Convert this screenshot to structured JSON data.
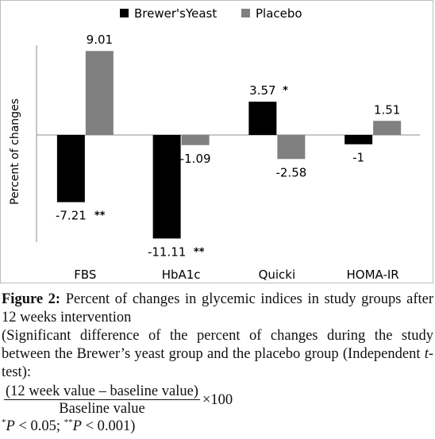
{
  "chart_data": {
    "type": "bar",
    "title": "",
    "xlabel": "",
    "ylabel": "Percent of changes",
    "categories": [
      "FBS",
      "HbA1c",
      "Quicki",
      "HOMA-IR"
    ],
    "series": [
      {
        "name": "Brewer'sYeast",
        "color": "#000000",
        "values": [
          -7.21,
          -11.11,
          3.57,
          -1
        ],
        "labels": [
          "-7.21",
          "-11.11",
          "3.57",
          "-1"
        ],
        "significance": [
          "**",
          "**",
          "*",
          ""
        ]
      },
      {
        "name": "Placebo",
        "color": "#808080",
        "values": [
          9.01,
          -1.09,
          -2.58,
          1.51
        ],
        "labels": [
          "9.01",
          "-1.09",
          "-2.58",
          "1.51"
        ],
        "significance": [
          "",
          "",
          "",
          ""
        ]
      }
    ],
    "ylim": [
      -11.5,
      9.6
    ],
    "grid": false,
    "legend_position": "top"
  },
  "caption": {
    "figure_label": "Figure 2:",
    "title_text": "Percent of changes in glycemic indices in study groups after 12 weeks intervention",
    "note_text": "(Significant difference of the percent of changes during the study between the Brewer’s yeast group and the placebo group (Independent ",
    "note_test_italic": "t",
    "note_test_suffix": "-test):",
    "formula_numerator": "(12 week value – baseline value)",
    "formula_denominator": "Baseline value",
    "formula_multiplier": "×100",
    "sig1_mark": "*",
    "sig1_var": "P",
    "sig1_text": " < 0.05; ",
    "sig2_mark": "**",
    "sig2_var": "P",
    "sig2_text": " < 0.001)"
  }
}
